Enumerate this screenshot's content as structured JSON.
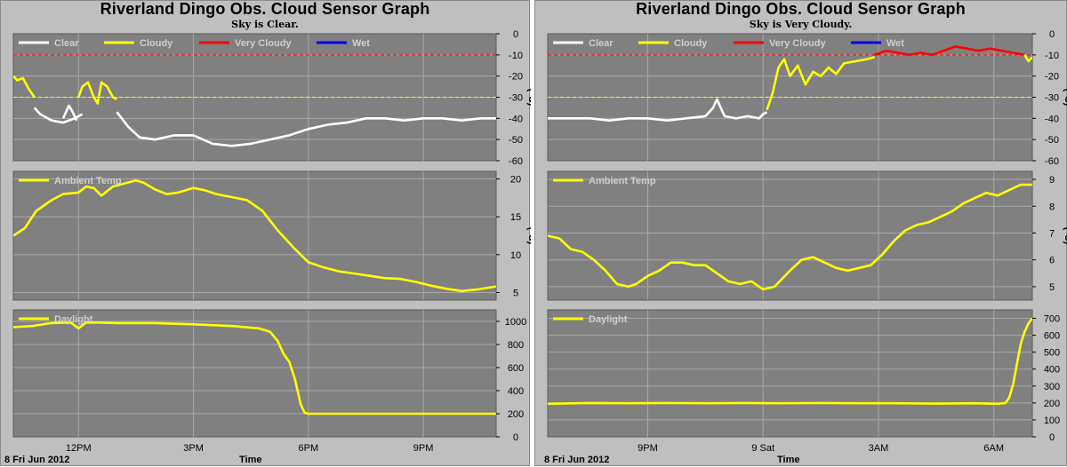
{
  "chart_data": [
    {
      "type": "line",
      "title": "Riverland Dingo Obs. Cloud Sensor Graph",
      "subtitle": "Sky is Clear.",
      "date_label": "8 Fri Jun 2012",
      "xlabel": "Time",
      "x_domain": [
        10.3,
        22.9
      ],
      "x_ticks": [
        {
          "v": 12,
          "label": "12PM"
        },
        {
          "v": 15,
          "label": "3PM"
        },
        {
          "v": 18,
          "label": "6PM"
        },
        {
          "v": 21,
          "label": "9PM"
        }
      ],
      "plots": [
        {
          "name": "sky",
          "ylabel": "(°C)",
          "ylim": [
            -60,
            0
          ],
          "yticks": [
            0,
            -10,
            -20,
            -30,
            -40,
            -50,
            -60
          ],
          "legend": [
            {
              "label": "Clear",
              "color": "#ffffff"
            },
            {
              "label": "Cloudy",
              "color": "#ffff00"
            },
            {
              "label": "Very Cloudy",
              "color": "#ff0000"
            },
            {
              "label": "Wet",
              "color": "#0000ff"
            }
          ],
          "hlines": [
            {
              "y": -10,
              "color": "#ff0000"
            },
            {
              "y": -30,
              "color": "#ffff00"
            }
          ],
          "series": [
            {
              "name": "Cloudy",
              "color": "#ffff00",
              "x": [
                10.3,
                10.4,
                10.55,
                10.7,
                10.85
              ],
              "y": [
                -20,
                -22,
                -21,
                -26,
                -30
              ]
            },
            {
              "name": "Clear",
              "color": "#ffffff",
              "x": [
                10.85,
                11.0,
                11.3,
                11.6,
                11.9,
                12.1
              ],
              "y": [
                -35,
                -38,
                -41,
                -42,
                -40,
                -38
              ]
            },
            {
              "name": "Clear",
              "color": "#ffffff",
              "x": [
                11.6,
                11.75,
                11.85,
                11.95
              ],
              "y": [
                -40,
                -34,
                -37,
                -41
              ]
            },
            {
              "name": "Cloudy",
              "color": "#ffff00",
              "x": [
                12.0,
                12.1,
                12.25,
                12.4,
                12.5,
                12.6,
                12.75,
                12.9,
                13.0
              ],
              "y": [
                -30,
                -25,
                -23,
                -30,
                -33,
                -23,
                -25,
                -30,
                -31
              ]
            },
            {
              "name": "Clear",
              "color": "#ffffff",
              "x": [
                13.0,
                13.3,
                13.6,
                14.0,
                14.5,
                15.0,
                15.5,
                16.0,
                16.5,
                17.0,
                17.5,
                18.0,
                18.5,
                19.0,
                19.5,
                20.0,
                20.5,
                21.0,
                21.5,
                22.0,
                22.5,
                22.9
              ],
              "y": [
                -37,
                -44,
                -49,
                -50,
                -48,
                -48,
                -52,
                -53,
                -52,
                -50,
                -48,
                -45,
                -43,
                -42,
                -40,
                -40,
                -41,
                -40,
                -40,
                -41,
                -40,
                -40
              ]
            }
          ]
        },
        {
          "name": "ambient",
          "ylabel": "(°C)",
          "ylim": [
            4,
            21
          ],
          "yticks": [
            20,
            15,
            10,
            5
          ],
          "legend": [
            {
              "label": "Ambient Temp",
              "color": "#ffff00"
            }
          ],
          "series": [
            {
              "name": "Ambient Temp",
              "color": "#ffff00",
              "x": [
                10.3,
                10.6,
                10.9,
                11.3,
                11.6,
                12.0,
                12.2,
                12.4,
                12.6,
                12.9,
                13.2,
                13.5,
                13.7,
                14.0,
                14.3,
                14.6,
                15.0,
                15.3,
                15.6,
                16.0,
                16.4,
                16.8,
                17.2,
                17.6,
                18.0,
                18.4,
                18.8,
                19.2,
                19.6,
                20.0,
                20.4,
                20.8,
                21.2,
                21.6,
                22.0,
                22.4,
                22.9
              ],
              "y": [
                12.5,
                13.5,
                15.8,
                17.2,
                18.0,
                18.2,
                19.0,
                18.8,
                17.8,
                19.0,
                19.4,
                19.8,
                19.5,
                18.6,
                18.0,
                18.2,
                18.8,
                18.5,
                18.0,
                17.6,
                17.2,
                15.8,
                13.2,
                11.0,
                9.0,
                8.3,
                7.8,
                7.5,
                7.2,
                6.9,
                6.8,
                6.4,
                5.9,
                5.5,
                5.2,
                5.4,
                5.8
              ]
            }
          ]
        },
        {
          "name": "daylight",
          "ylabel": "",
          "ylim": [
            0,
            1100
          ],
          "yticks": [
            1000,
            800,
            600,
            400,
            200,
            0
          ],
          "legend": [
            {
              "label": "Daylight",
              "color": "#ffff00"
            }
          ],
          "series": [
            {
              "name": "Daylight",
              "color": "#ffff00",
              "x": [
                10.3,
                10.8,
                11.3,
                11.8,
                12.0,
                12.2,
                12.5,
                13.0,
                14.0,
                15.0,
                16.0,
                16.7,
                17.0,
                17.2,
                17.35,
                17.5,
                17.65,
                17.8,
                17.9,
                18.0,
                18.5,
                19.0,
                20.0,
                21.0,
                22.0,
                22.9
              ],
              "y": [
                950,
                960,
                985,
                990,
                940,
                990,
                990,
                985,
                985,
                975,
                960,
                940,
                910,
                830,
                720,
                650,
                500,
                280,
                210,
                200,
                200,
                200,
                200,
                200,
                200,
                200
              ]
            }
          ]
        }
      ]
    },
    {
      "type": "line",
      "title": "Riverland Dingo Obs. Cloud Sensor Graph",
      "subtitle": "Sky is Very Cloudy.",
      "date_label": "8 Fri Jun 2012",
      "xlabel": "Time",
      "x_domain": [
        18.4,
        31.0
      ],
      "x_ticks": [
        {
          "v": 21,
          "label": "9PM"
        },
        {
          "v": 24,
          "label": "9 Sat"
        },
        {
          "v": 27,
          "label": "3AM"
        },
        {
          "v": 30,
          "label": "6AM"
        }
      ],
      "plots": [
        {
          "name": "sky",
          "ylabel": "(°C)",
          "ylim": [
            -60,
            0
          ],
          "yticks": [
            0,
            -10,
            -20,
            -30,
            -40,
            -50,
            -60
          ],
          "legend": [
            {
              "label": "Clear",
              "color": "#ffffff"
            },
            {
              "label": "Cloudy",
              "color": "#ffff00"
            },
            {
              "label": "Very Cloudy",
              "color": "#ff0000"
            },
            {
              "label": "Wet",
              "color": "#0000ff"
            }
          ],
          "hlines": [
            {
              "y": -10,
              "color": "#ff0000"
            },
            {
              "y": -30,
              "color": "#ffff00"
            }
          ],
          "series": [
            {
              "name": "Clear",
              "color": "#ffffff",
              "x": [
                18.4,
                19.0,
                19.5,
                20.0,
                20.5,
                21.0,
                21.5,
                22.0,
                22.5,
                22.7,
                22.8,
                22.9,
                23.0,
                23.3,
                23.6,
                23.9,
                24.0,
                24.1
              ],
              "y": [
                -40,
                -40,
                -40,
                -41,
                -40,
                -40,
                -41,
                -40,
                -39,
                -35,
                -31,
                -35,
                -39,
                -40,
                -39,
                -40,
                -38,
                -37
              ]
            },
            {
              "name": "Cloudy",
              "color": "#ffff00",
              "x": [
                24.1,
                24.25,
                24.4,
                24.55,
                24.7,
                24.9,
                25.1,
                25.3,
                25.5,
                25.7,
                25.9,
                26.1,
                26.4,
                26.7,
                26.9
              ],
              "y": [
                -36,
                -28,
                -16,
                -12,
                -20,
                -15,
                -24,
                -18,
                -20,
                -16,
                -19,
                -14,
                -13,
                -12,
                -11
              ]
            },
            {
              "name": "Very Cloudy",
              "color": "#ff0000",
              "x": [
                26.9,
                27.2,
                27.5,
                27.8,
                28.1,
                28.4,
                28.7,
                29.0,
                29.3,
                29.6,
                29.9,
                30.2,
                30.5,
                30.8
              ],
              "y": [
                -10,
                -8,
                -9,
                -10,
                -9,
                -10,
                -8,
                -6,
                -7,
                -8,
                -7,
                -8,
                -9,
                -10
              ]
            },
            {
              "name": "Cloudy",
              "color": "#ffff00",
              "x": [
                30.8,
                30.9,
                31.0
              ],
              "y": [
                -10,
                -13,
                -11
              ]
            }
          ]
        },
        {
          "name": "ambient",
          "ylabel": "(°C)",
          "ylim": [
            4.5,
            9.3
          ],
          "yticks": [
            9,
            8,
            7,
            6,
            5
          ],
          "legend": [
            {
              "label": "Ambient Temp",
              "color": "#ffff00"
            }
          ],
          "series": [
            {
              "name": "Ambient Temp",
              "color": "#ffff00",
              "x": [
                18.4,
                18.7,
                19.0,
                19.3,
                19.6,
                19.9,
                20.2,
                20.5,
                20.7,
                21.0,
                21.3,
                21.6,
                21.9,
                22.2,
                22.5,
                22.8,
                23.1,
                23.4,
                23.7,
                24.0,
                24.3,
                24.5,
                24.7,
                25.0,
                25.3,
                25.6,
                25.9,
                26.2,
                26.5,
                26.8,
                27.1,
                27.4,
                27.7,
                28.0,
                28.3,
                28.6,
                28.9,
                29.2,
                29.5,
                29.8,
                30.1,
                30.4,
                30.7,
                31.0
              ],
              "y": [
                6.9,
                6.8,
                6.4,
                6.3,
                6.0,
                5.6,
                5.1,
                5.0,
                5.1,
                5.4,
                5.6,
                5.9,
                5.9,
                5.8,
                5.8,
                5.5,
                5.2,
                5.1,
                5.2,
                4.9,
                5.0,
                5.3,
                5.6,
                6.0,
                6.1,
                5.9,
                5.7,
                5.6,
                5.7,
                5.8,
                6.2,
                6.7,
                7.1,
                7.3,
                7.4,
                7.6,
                7.8,
                8.1,
                8.3,
                8.5,
                8.4,
                8.6,
                8.8,
                8.8
              ]
            }
          ]
        },
        {
          "name": "daylight",
          "ylabel": "",
          "ylim": [
            0,
            750
          ],
          "yticks": [
            700,
            600,
            500,
            400,
            300,
            200,
            100,
            0
          ],
          "legend": [
            {
              "label": "Daylight",
              "color": "#ffff00"
            }
          ],
          "series": [
            {
              "name": "Daylight",
              "color": "#ffff00",
              "x": [
                18.4,
                19.5,
                20.5,
                21.5,
                22.5,
                23.5,
                24.5,
                25.5,
                26.5,
                27.5,
                28.5,
                29.5,
                30.1,
                30.3,
                30.4,
                30.5,
                30.6,
                30.7,
                30.8,
                30.9,
                31.0
              ],
              "y": [
                195,
                200,
                198,
                200,
                198,
                200,
                198,
                200,
                198,
                198,
                196,
                198,
                195,
                200,
                230,
                310,
                430,
                550,
                620,
                670,
                700
              ]
            }
          ]
        }
      ]
    }
  ]
}
